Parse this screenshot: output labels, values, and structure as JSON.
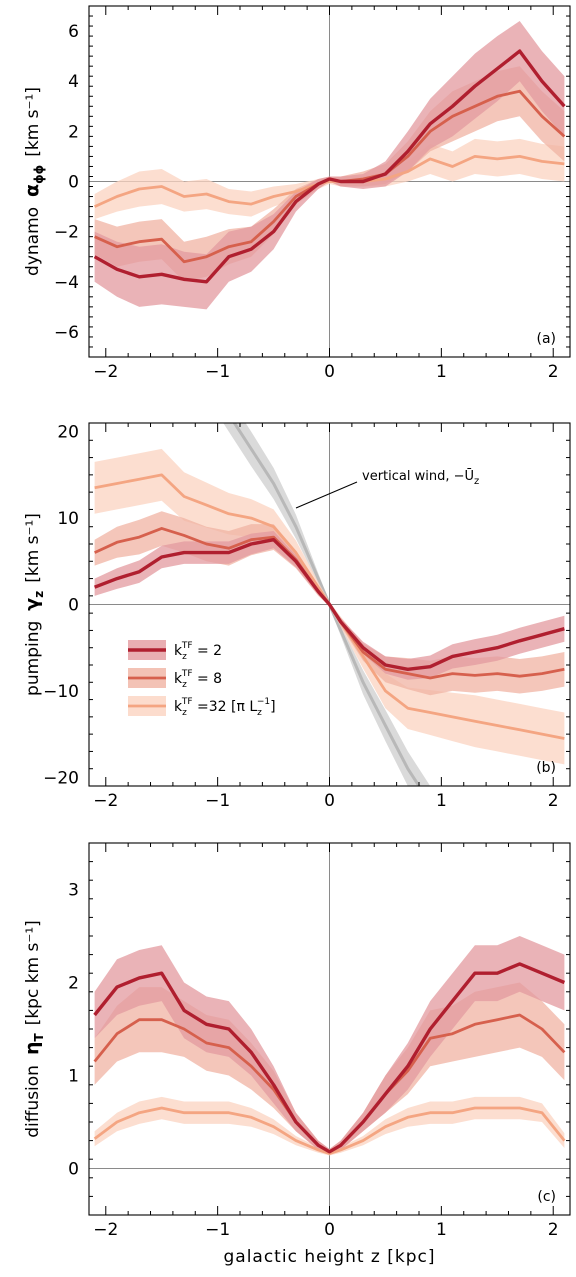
{
  "chart_data": [
    {
      "type": "line",
      "panel_label": "(a)",
      "ylabel_prefix": "dynamo",
      "ylabel_symbol": "α",
      "ylabel_symbol_sub": "ϕϕ",
      "ylabel_unit": "[km s⁻¹]",
      "xlim": [
        -2.15,
        2.15
      ],
      "ylim": [
        -7,
        7
      ],
      "xticks": [
        -2,
        -1,
        0,
        1,
        2
      ],
      "yticks": [
        -6,
        -4,
        -2,
        0,
        2,
        4,
        6
      ],
      "x": [
        -2.1,
        -1.9,
        -1.7,
        -1.5,
        -1.3,
        -1.1,
        -0.9,
        -0.7,
        -0.5,
        -0.3,
        -0.1,
        0.0,
        0.1,
        0.3,
        0.5,
        0.7,
        0.9,
        1.1,
        1.3,
        1.5,
        1.7,
        1.9,
        2.1
      ],
      "series": [
        {
          "name": "k_z^TF = 2",
          "values": [
            -3.0,
            -3.5,
            -3.8,
            -3.7,
            -3.9,
            -4.0,
            -3.0,
            -2.7,
            -2.0,
            -0.8,
            -0.1,
            0.1,
            0.0,
            0.0,
            0.3,
            1.2,
            2.3,
            3.0,
            3.8,
            4.5,
            5.2,
            4.0,
            3.0
          ],
          "err": [
            1.0,
            1.1,
            1.2,
            1.2,
            1.1,
            1.1,
            1.0,
            0.9,
            0.7,
            0.4,
            0.2,
            0.1,
            0.2,
            0.3,
            0.5,
            0.8,
            1.0,
            1.2,
            1.3,
            1.3,
            1.2,
            1.2,
            1.2
          ]
        },
        {
          "name": "k_z^TF = 8",
          "values": [
            -2.2,
            -2.6,
            -2.4,
            -2.3,
            -3.2,
            -3.0,
            -2.6,
            -2.4,
            -1.6,
            -0.6,
            -0.1,
            0.1,
            0.0,
            0.1,
            0.3,
            1.0,
            2.0,
            2.6,
            3.0,
            3.4,
            3.6,
            2.6,
            1.8
          ],
          "err": [
            0.7,
            0.8,
            0.8,
            0.8,
            0.8,
            0.8,
            0.7,
            0.6,
            0.5,
            0.3,
            0.2,
            0.1,
            0.2,
            0.3,
            0.4,
            0.6,
            0.8,
            1.0,
            1.0,
            1.0,
            1.0,
            1.0,
            1.0
          ]
        },
        {
          "name": "k_z^TF = 32 [π L_z^-1]",
          "values": [
            -1.0,
            -0.6,
            -0.3,
            -0.2,
            -0.6,
            -0.5,
            -0.8,
            -0.9,
            -0.6,
            -0.4,
            -0.1,
            0.0,
            0.0,
            0.0,
            0.1,
            0.4,
            0.9,
            0.6,
            1.0,
            0.9,
            1.0,
            0.8,
            0.7
          ],
          "err": [
            0.5,
            0.6,
            0.7,
            0.7,
            0.6,
            0.6,
            0.5,
            0.5,
            0.4,
            0.3,
            0.2,
            0.1,
            0.2,
            0.2,
            0.3,
            0.4,
            0.6,
            0.6,
            0.7,
            0.7,
            0.7,
            0.7,
            0.7
          ]
        }
      ]
    },
    {
      "type": "line",
      "panel_label": "(b)",
      "ylabel_prefix": "pumping",
      "ylabel_symbol": "γ",
      "ylabel_symbol_sub": "z",
      "ylabel_unit": "[km s⁻¹]",
      "xlim": [
        -2.15,
        2.15
      ],
      "ylim": [
        -21,
        21
      ],
      "xticks": [
        -2,
        -1,
        0,
        1,
        2
      ],
      "yticks": [
        -20,
        -10,
        0,
        10,
        20
      ],
      "annotation": "vertical wind, −Ū",
      "annotation_sub": "z",
      "x": [
        -2.1,
        -1.9,
        -1.7,
        -1.5,
        -1.3,
        -1.1,
        -0.9,
        -0.7,
        -0.5,
        -0.3,
        -0.1,
        0.0,
        0.1,
        0.3,
        0.5,
        0.7,
        0.9,
        1.1,
        1.3,
        1.5,
        1.7,
        1.9,
        2.1
      ],
      "series": [
        {
          "name": "k_z^TF = 2",
          "values": [
            2.0,
            3.0,
            3.8,
            5.5,
            6.0,
            6.0,
            6.0,
            7.0,
            7.5,
            5.0,
            1.5,
            0.0,
            -2.0,
            -5.0,
            -7.0,
            -7.5,
            -7.2,
            -6.0,
            -5.5,
            -5.0,
            -4.2,
            -3.5,
            -2.8
          ],
          "err": [
            1.0,
            1.2,
            1.3,
            1.3,
            1.3,
            1.3,
            1.3,
            1.2,
            1.0,
            0.7,
            0.4,
            0.2,
            0.4,
            0.7,
            1.0,
            1.2,
            1.3,
            1.4,
            1.5,
            1.5,
            1.5,
            1.5,
            1.5
          ]
        },
        {
          "name": "k_z^TF = 8",
          "values": [
            6.0,
            7.2,
            7.8,
            8.8,
            8.0,
            7.0,
            6.5,
            7.5,
            7.8,
            5.2,
            1.5,
            0.0,
            -2.0,
            -5.5,
            -7.5,
            -8.0,
            -8.5,
            -8.0,
            -8.2,
            -8.0,
            -8.3,
            -8.0,
            -7.5
          ],
          "err": [
            1.5,
            1.8,
            2.0,
            2.0,
            2.0,
            2.0,
            2.0,
            1.8,
            1.5,
            1.0,
            0.5,
            0.2,
            0.5,
            1.0,
            1.5,
            1.8,
            2.0,
            2.0,
            2.0,
            2.0,
            2.0,
            2.0,
            2.0
          ]
        },
        {
          "name": "k_z^TF = 32 [π L_z^-1]",
          "values": [
            13.5,
            14.0,
            14.5,
            15.0,
            12.5,
            11.5,
            10.5,
            10.0,
            9.0,
            6.0,
            2.0,
            0.0,
            -2.0,
            -6.0,
            -10.0,
            -12.0,
            -12.5,
            -13.0,
            -13.5,
            -14.0,
            -14.5,
            -15.0,
            -15.5
          ],
          "err": [
            3.0,
            3.0,
            3.0,
            3.0,
            2.8,
            2.6,
            2.4,
            2.2,
            2.0,
            1.4,
            0.6,
            0.3,
            0.6,
            1.4,
            2.0,
            2.4,
            2.6,
            2.8,
            3.0,
            3.0,
            3.0,
            3.0,
            3.0
          ]
        }
      ],
      "wind": {
        "x": [
          -1.1,
          -0.9,
          -0.7,
          -0.5,
          -0.3,
          -0.1,
          0.0,
          0.1,
          0.3,
          0.5,
          0.7,
          0.9,
          1.1
        ],
        "values": [
          26.0,
          22.0,
          18.0,
          14.0,
          9.0,
          3.0,
          0.0,
          -3.0,
          -9.0,
          -14.0,
          -19.0,
          -23.0,
          -27.0
        ],
        "err": [
          2.0,
          2.0,
          2.0,
          1.8,
          1.4,
          0.6,
          0.3,
          0.6,
          1.4,
          1.8,
          2.0,
          2.0,
          2.0
        ]
      }
    },
    {
      "type": "line",
      "panel_label": "(c)",
      "ylabel_prefix": "diffusion",
      "ylabel_symbol": "η",
      "ylabel_symbol_sub": "T",
      "ylabel_unit": "[kpc km s⁻¹]",
      "xlabel": "galactic height  z  [kpc]",
      "xlim": [
        -2.15,
        2.15
      ],
      "ylim": [
        -0.5,
        3.5
      ],
      "xticks": [
        -2,
        -1,
        0,
        1,
        2
      ],
      "yticks": [
        0,
        1,
        2,
        3
      ],
      "x": [
        -2.1,
        -1.9,
        -1.7,
        -1.5,
        -1.3,
        -1.1,
        -0.9,
        -0.7,
        -0.5,
        -0.3,
        -0.1,
        0.0,
        0.1,
        0.3,
        0.5,
        0.7,
        0.9,
        1.1,
        1.3,
        1.5,
        1.7,
        1.9,
        2.1
      ],
      "series": [
        {
          "name": "k_z^TF = 2",
          "values": [
            1.65,
            1.95,
            2.05,
            2.1,
            1.7,
            1.55,
            1.5,
            1.25,
            0.9,
            0.5,
            0.25,
            0.18,
            0.25,
            0.5,
            0.8,
            1.1,
            1.5,
            1.8,
            2.1,
            2.1,
            2.2,
            2.1,
            2.0
          ],
          "err": [
            0.25,
            0.3,
            0.3,
            0.3,
            0.3,
            0.3,
            0.3,
            0.25,
            0.2,
            0.1,
            0.05,
            0.03,
            0.05,
            0.1,
            0.2,
            0.25,
            0.3,
            0.3,
            0.3,
            0.3,
            0.3,
            0.3,
            0.3
          ]
        },
        {
          "name": "k_z^TF = 8",
          "values": [
            1.15,
            1.45,
            1.6,
            1.6,
            1.5,
            1.35,
            1.3,
            1.1,
            0.85,
            0.5,
            0.25,
            0.18,
            0.25,
            0.5,
            0.8,
            1.05,
            1.4,
            1.45,
            1.55,
            1.6,
            1.65,
            1.5,
            1.25
          ],
          "err": [
            0.25,
            0.3,
            0.35,
            0.35,
            0.3,
            0.3,
            0.3,
            0.25,
            0.2,
            0.1,
            0.05,
            0.03,
            0.05,
            0.1,
            0.2,
            0.25,
            0.3,
            0.3,
            0.35,
            0.35,
            0.35,
            0.3,
            0.3
          ]
        },
        {
          "name": "k_z^TF = 32 [π L_z^-1]",
          "values": [
            0.32,
            0.5,
            0.6,
            0.65,
            0.6,
            0.6,
            0.6,
            0.55,
            0.45,
            0.3,
            0.2,
            0.16,
            0.2,
            0.3,
            0.45,
            0.55,
            0.6,
            0.6,
            0.65,
            0.65,
            0.65,
            0.6,
            0.3
          ],
          "err": [
            0.08,
            0.1,
            0.12,
            0.12,
            0.12,
            0.12,
            0.12,
            0.1,
            0.08,
            0.05,
            0.03,
            0.02,
            0.03,
            0.05,
            0.08,
            0.1,
            0.12,
            0.12,
            0.12,
            0.12,
            0.12,
            0.1,
            0.08
          ]
        }
      ]
    }
  ],
  "legend": {
    "placement": "lower-left of panel (b)",
    "entries": [
      {
        "prefix": "k",
        "sub": "z",
        "sup": "TF",
        "value": " = 2"
      },
      {
        "prefix": "k",
        "sub": "z",
        "sup": "TF",
        "value": " = 8"
      },
      {
        "prefix": "k",
        "sub": "z",
        "sup": "TF",
        "value": " =32 [π L",
        "sub2": "z",
        "sup2": "−1",
        "tail": "]"
      }
    ]
  },
  "colors": {
    "series": [
      "#b01f2f",
      "#d6604d",
      "#f4a582"
    ],
    "bands": [
      "#e39a9f",
      "#f0b3a3",
      "#fbd3c0"
    ],
    "wind": "#b8b8b8",
    "wind_band": "#dadada",
    "zero_line": "#8a8a8a"
  }
}
